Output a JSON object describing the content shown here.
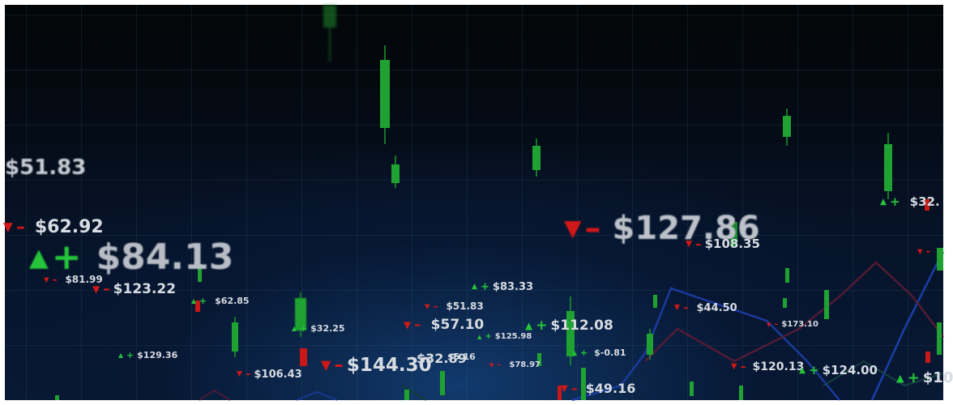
{
  "colors": {
    "up": "#25c43a",
    "down": "#d01818",
    "text": "#d7dbe2",
    "line_blue": "#1e3fae",
    "line_red": "#5a1c34"
  },
  "tickers": [
    {
      "price": "$51.83",
      "dir": "none"
    },
    {
      "price": "$62.92",
      "dir": "down",
      "sign": "–"
    },
    {
      "price": "$84.13",
      "dir": "up",
      "sign": "+"
    },
    {
      "price": "$81.99",
      "dir": "down",
      "sign": "–"
    },
    {
      "price": "$123.22",
      "dir": "down",
      "sign": "–"
    },
    {
      "price": "$62.85",
      "dir": "up",
      "sign": "+"
    },
    {
      "price": "$32.25",
      "dir": "up",
      "sign": "+"
    },
    {
      "price": "$129.36",
      "dir": "up",
      "sign": "+"
    },
    {
      "price": "$106.43",
      "dir": "down",
      "sign": "–"
    },
    {
      "price": "$144.30",
      "dir": "down",
      "sign": "–"
    },
    {
      "price": "$32.89",
      "dir": "none"
    },
    {
      "price": "$5.16",
      "dir": "none"
    },
    {
      "price": "$83.33",
      "dir": "up",
      "sign": "+"
    },
    {
      "price": "$51.83",
      "dir": "down",
      "sign": "–"
    },
    {
      "price": "$57.10",
      "dir": "down",
      "sign": "–"
    },
    {
      "price": "$125.98",
      "dir": "up",
      "sign": "+"
    },
    {
      "price": "$112.08",
      "dir": "up",
      "sign": "+"
    },
    {
      "price": "$78.97",
      "dir": "down",
      "sign": "–"
    },
    {
      "price": "$-0.81",
      "dir": "up",
      "sign": "+"
    },
    {
      "price": "$49.16",
      "dir": "down",
      "sign": "–"
    },
    {
      "price": "$127.86",
      "dir": "down",
      "sign": "–"
    },
    {
      "price": "$108.35",
      "dir": "down",
      "sign": "–"
    },
    {
      "price": "$44.50",
      "dir": "down",
      "sign": "–"
    },
    {
      "price": "$173.10",
      "dir": "down",
      "sign": "–"
    },
    {
      "price": "$120.13",
      "dir": "down",
      "sign": "–"
    },
    {
      "price": "$124.00",
      "dir": "up",
      "sign": "+"
    },
    {
      "price": "$32.",
      "dir": "up",
      "sign": "+"
    },
    {
      "price": "$10",
      "dir": "up",
      "sign": "+"
    }
  ]
}
